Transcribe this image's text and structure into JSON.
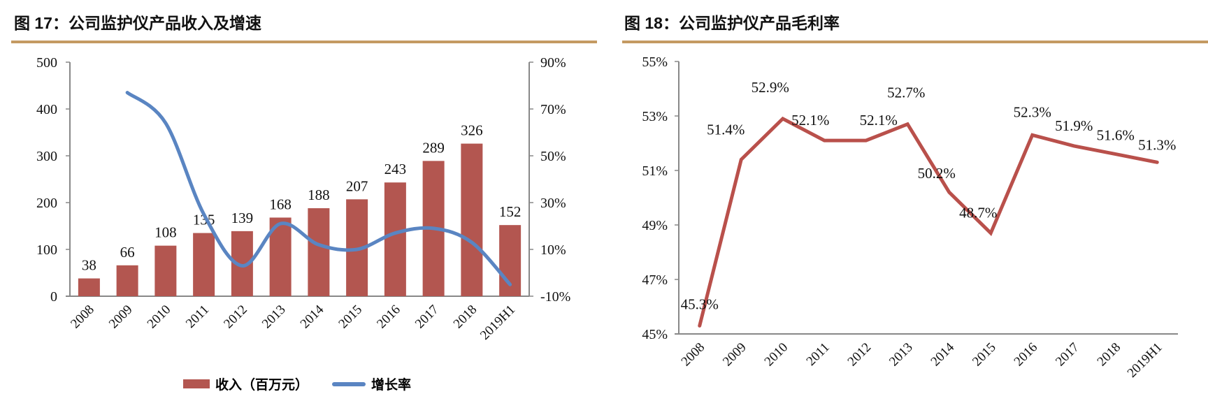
{
  "left": {
    "title": "图 17：公司监护仪产品收入及增速",
    "legend": {
      "bar": "收入（百万元）",
      "line": "增长率"
    }
  },
  "right": {
    "title": "图 18：公司监护仪产品毛利率"
  },
  "colors": {
    "rule": "#c49a62",
    "bar": "#b35650",
    "growth_line": "#5a85c2",
    "margin_line": "#b9504b",
    "axis": "#888888"
  },
  "chart_data": [
    {
      "type": "bar+line",
      "categories": [
        "2008",
        "2009",
        "2010",
        "2011",
        "2012",
        "2013",
        "2014",
        "2015",
        "2016",
        "2017",
        "2018",
        "2019H1"
      ],
      "series": [
        {
          "name": "收入（百万元）",
          "type": "bar",
          "axis": "left",
          "values": [
            38,
            66,
            108,
            135,
            139,
            168,
            188,
            207,
            243,
            289,
            326,
            152
          ],
          "labels": [
            "38",
            "66",
            "108",
            "135",
            "139",
            "168",
            "188",
            "207",
            "243",
            "289",
            "326",
            "152"
          ]
        },
        {
          "name": "增长率",
          "type": "line",
          "smooth": true,
          "axis": "right",
          "values": [
            null,
            77,
            64,
            25,
            3,
            21,
            12,
            10,
            17,
            19,
            13,
            -5
          ]
        }
      ],
      "y_left": {
        "range": [
          0,
          500
        ],
        "ticks": [
          "0",
          "100",
          "200",
          "300",
          "400",
          "500"
        ]
      },
      "y_right": {
        "range": [
          -10,
          90
        ],
        "unit": "%",
        "ticks": [
          "-10%",
          "10%",
          "30%",
          "50%",
          "70%",
          "90%"
        ]
      },
      "grid": false,
      "legend_position": "bottom"
    },
    {
      "type": "line",
      "categories": [
        "2008",
        "2009",
        "2010",
        "2011",
        "2012",
        "2013",
        "2014",
        "2015",
        "2016",
        "2017",
        "2018",
        "2019H1"
      ],
      "series": [
        {
          "type": "line",
          "values": [
            45.3,
            51.4,
            52.9,
            52.1,
            52.1,
            52.7,
            50.2,
            48.7,
            52.3,
            51.9,
            51.6,
            51.3
          ],
          "labels": [
            "45.3%",
            "51.4%",
            "52.9%",
            "52.1%",
            "52.1%",
            "52.7%",
            "50.2%",
            "48.7%",
            "52.3%",
            "51.9%",
            "51.6%",
            "51.3%"
          ]
        }
      ],
      "y": {
        "range": [
          45,
          55
        ],
        "unit": "%",
        "ticks": [
          "45%",
          "47%",
          "49%",
          "51%",
          "53%",
          "55%"
        ]
      },
      "grid": false
    }
  ]
}
